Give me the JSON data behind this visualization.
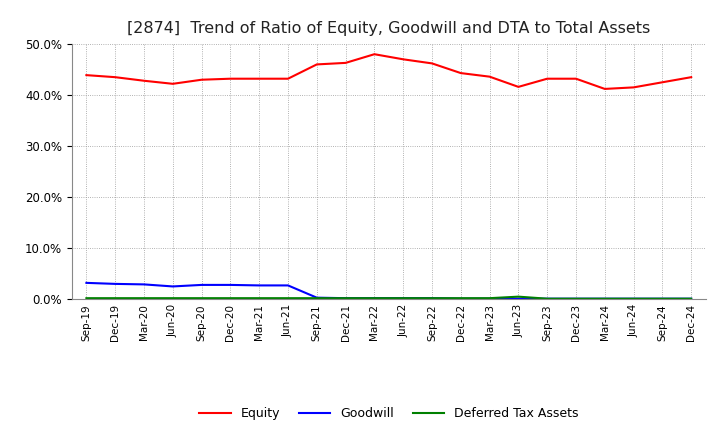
{
  "title": "[2874]  Trend of Ratio of Equity, Goodwill and DTA to Total Assets",
  "x_labels": [
    "Sep-19",
    "Dec-19",
    "Mar-20",
    "Jun-20",
    "Sep-20",
    "Dec-20",
    "Mar-21",
    "Jun-21",
    "Sep-21",
    "Dec-21",
    "Mar-22",
    "Jun-22",
    "Sep-22",
    "Dec-22",
    "Mar-23",
    "Jun-23",
    "Sep-23",
    "Dec-23",
    "Mar-24",
    "Jun-24",
    "Sep-24",
    "Dec-24"
  ],
  "equity": [
    0.439,
    0.435,
    0.428,
    0.422,
    0.43,
    0.432,
    0.432,
    0.432,
    0.46,
    0.463,
    0.48,
    0.47,
    0.462,
    0.443,
    0.436,
    0.416,
    0.432,
    0.432,
    0.412,
    0.415,
    0.425,
    0.435
  ],
  "goodwill": [
    0.032,
    0.03,
    0.029,
    0.025,
    0.028,
    0.028,
    0.027,
    0.027,
    0.003,
    0.002,
    0.002,
    0.002,
    0.002,
    0.001,
    0.001,
    0.001,
    0.001,
    0.001,
    0.001,
    0.001,
    0.001,
    0.001
  ],
  "dta": [
    0.002,
    0.002,
    0.002,
    0.002,
    0.002,
    0.002,
    0.002,
    0.002,
    0.002,
    0.002,
    0.002,
    0.002,
    0.002,
    0.002,
    0.002,
    0.005,
    0.001,
    0.001,
    0.001,
    0.001,
    0.001,
    0.001
  ],
  "equity_color": "#FF0000",
  "goodwill_color": "#0000FF",
  "dta_color": "#008000",
  "ylim": [
    0.0,
    0.5
  ],
  "yticks": [
    0.0,
    0.1,
    0.2,
    0.3,
    0.4,
    0.5
  ],
  "background_color": "#FFFFFF",
  "plot_bg_color": "#FFFFFF",
  "grid_color": "#999999",
  "title_fontsize": 11.5
}
